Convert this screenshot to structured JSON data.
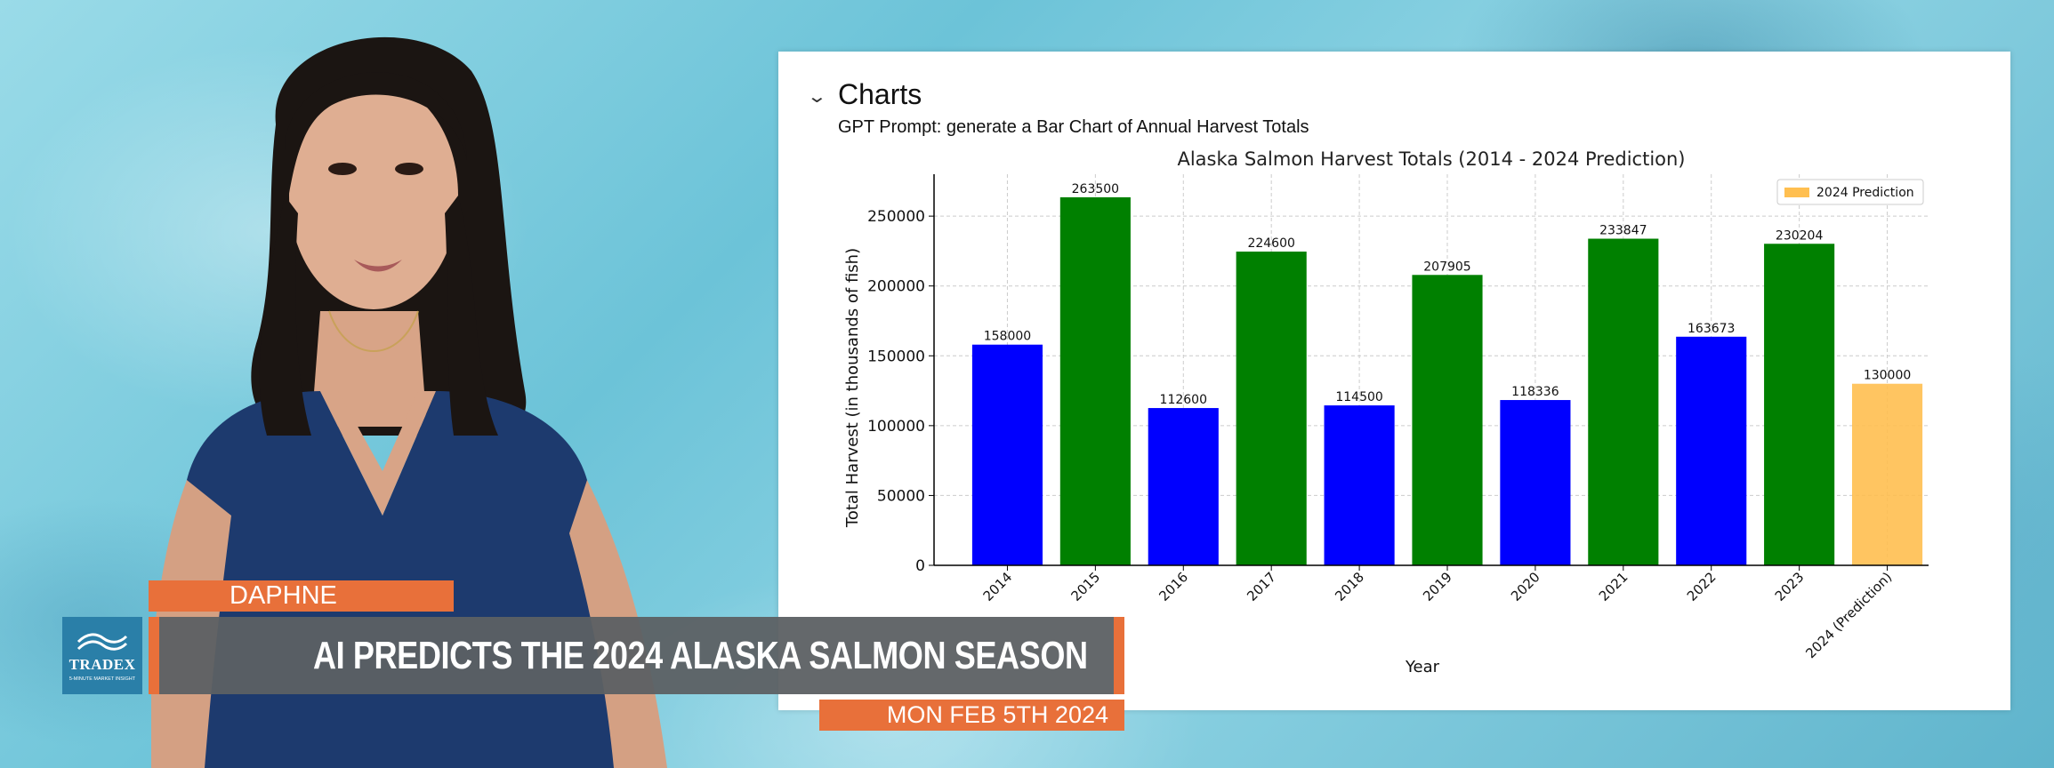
{
  "panel": {
    "title": "Charts",
    "prompt": "GPT Prompt: generate a Bar Chart of Annual Harvest Totals"
  },
  "lower_third": {
    "name": "DAPHNE",
    "headline": "AI PREDICTS THE 2024 ALASKA SALMON SEASON",
    "date": "MON FEB 5TH 2024",
    "logo_text": "TRADEX",
    "logo_subtext": "5-MINUTE MARKET INSIGHT"
  },
  "colors": {
    "accent_orange": "#e8703a",
    "headline_bg": "#5c6063",
    "logo_bg": "#2a7fa8",
    "bar_blue": "#0000ff",
    "bar_green": "#008000",
    "bar_prediction": "#ffbf50"
  },
  "chart_data": {
    "type": "bar",
    "title": "Alaska Salmon Harvest Totals (2014 - 2024 Prediction)",
    "xlabel": "Year",
    "ylabel": "Total Harvest (in thousands of fish)",
    "ylim": [
      0,
      280000
    ],
    "yticks": [
      0,
      50000,
      100000,
      150000,
      200000,
      250000
    ],
    "grid": true,
    "legend": {
      "position": "top-right",
      "entries": [
        "2024 Prediction"
      ]
    },
    "categories": [
      "2014",
      "2015",
      "2016",
      "2017",
      "2018",
      "2019",
      "2020",
      "2021",
      "2022",
      "2023",
      "2024 (Prediction)"
    ],
    "values": [
      158000,
      263500,
      112600,
      224600,
      114500,
      207905,
      118336,
      233847,
      163673,
      230204,
      130000
    ],
    "bar_colors": [
      "blue",
      "green",
      "blue",
      "green",
      "blue",
      "green",
      "blue",
      "green",
      "blue",
      "green",
      "orange"
    ]
  }
}
